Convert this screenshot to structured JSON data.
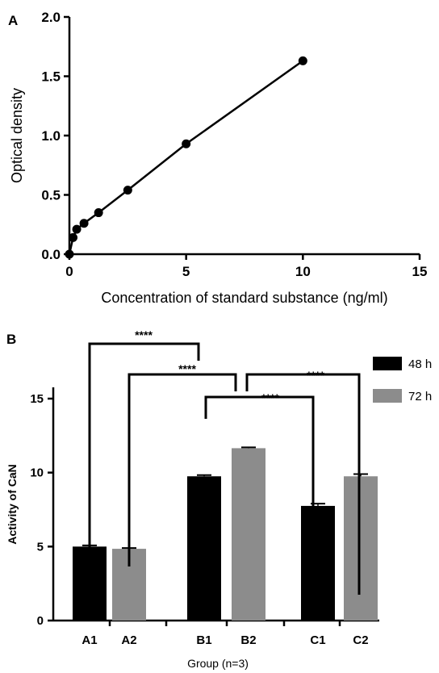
{
  "chart_data": [
    {
      "panel": "A",
      "type": "line",
      "xlabel": "Concentration of standard substance (ng/ml)",
      "ylabel": "Optical density",
      "xlim": [
        0,
        15
      ],
      "ylim": [
        0,
        2.0
      ],
      "x_ticks": [
        "0",
        "5",
        "10",
        "15"
      ],
      "y_ticks": [
        "0.0",
        "0.5",
        "1.0",
        "1.5",
        "2.0"
      ],
      "series": [
        {
          "x": [
            0,
            0.156,
            0.3125,
            0.625,
            1.25,
            2.5,
            5,
            10
          ],
          "y": [
            0.0,
            0.14,
            0.21,
            0.26,
            0.35,
            0.54,
            0.93,
            1.63
          ]
        }
      ],
      "color": "#000000"
    },
    {
      "panel": "B",
      "type": "bar",
      "xlabel": "Group (n=3)",
      "ylabel": "Activity of CaN",
      "ylim": [
        0,
        20
      ],
      "y_ticks": [
        "0",
        "5",
        "10",
        "15"
      ],
      "categories": [
        "A1",
        "A2",
        "B1",
        "B2",
        "C1",
        "C2"
      ],
      "series": [
        {
          "name": "48 h",
          "color": "#000000"
        },
        {
          "name": "72 h",
          "color": "#8c8c8c"
        }
      ],
      "bars": [
        {
          "category": "A1",
          "series": "48 h",
          "value": 5.0,
          "error": 0.08
        },
        {
          "category": "A2",
          "series": "72 h",
          "value": 4.85,
          "error": 0.05
        },
        {
          "category": "B1",
          "series": "48 h",
          "value": 9.75,
          "error": 0.08
        },
        {
          "category": "B2",
          "series": "72 h",
          "value": 11.65,
          "error": 0.06
        },
        {
          "category": "C1",
          "series": "48 h",
          "value": 7.75,
          "error": 0.15
        },
        {
          "category": "C2",
          "series": "72 h",
          "value": 9.75,
          "error": 0.15
        }
      ],
      "significance": [
        {
          "from": "A1",
          "to": "B1",
          "label": "****"
        },
        {
          "from": "A2",
          "to": "B1-B2",
          "label": "****"
        },
        {
          "from": "B1-B2",
          "to": "C2",
          "label": "****"
        },
        {
          "from": "B1",
          "to": "C1",
          "label": "****"
        }
      ],
      "legend": "top-right"
    }
  ]
}
